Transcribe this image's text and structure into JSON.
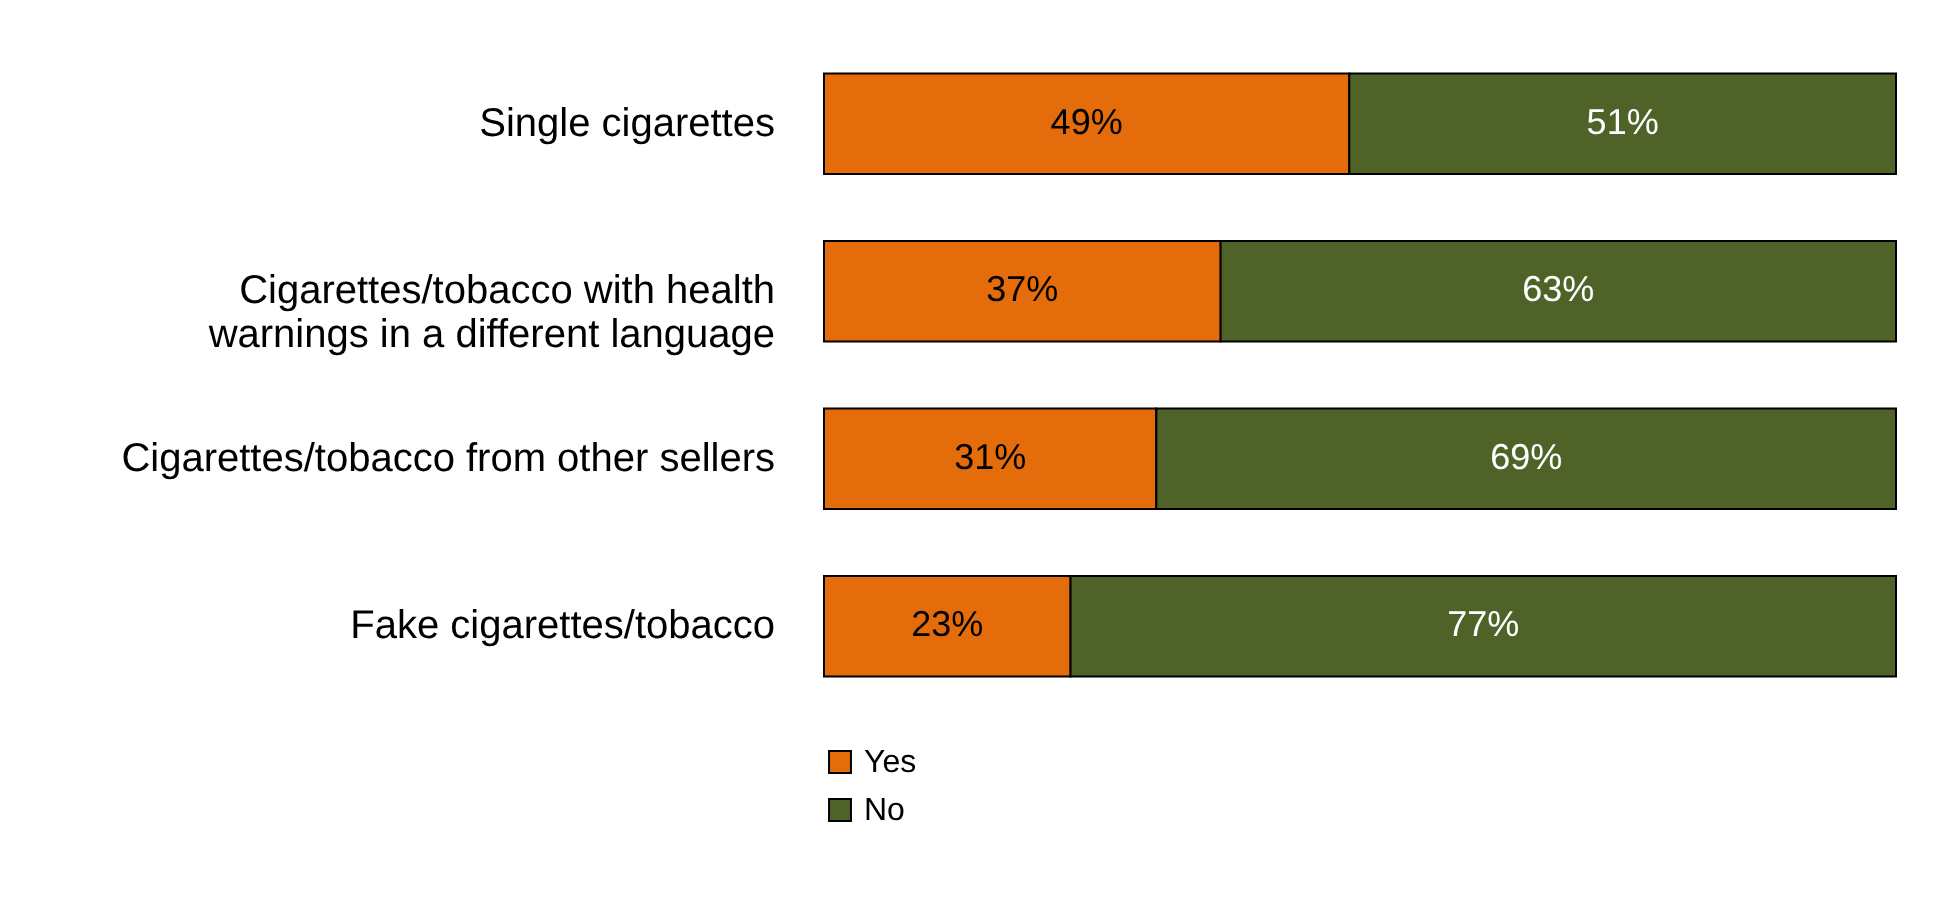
{
  "chart_data": {
    "type": "bar",
    "orientation": "horizontal",
    "stacked": true,
    "categories": [
      "Single cigarettes",
      "Cigarettes/tobacco with health warnings in a different language",
      "Cigarettes/tobacco from other sellers",
      "Fake cigarettes/tobacco"
    ],
    "series": [
      {
        "name": "Yes",
        "color": "#e46c0a",
        "values": [
          49,
          37,
          31,
          23
        ],
        "value_labels": [
          "49%",
          "37%",
          "31%",
          "23%"
        ]
      },
      {
        "name": "No",
        "color": "#4f6228",
        "values": [
          51,
          63,
          69,
          77
        ],
        "value_labels": [
          "51%",
          "63%",
          "69%",
          "77%"
        ]
      }
    ],
    "xlim": [
      0,
      100
    ],
    "tick_labels": "y",
    "legend": "bottom"
  }
}
